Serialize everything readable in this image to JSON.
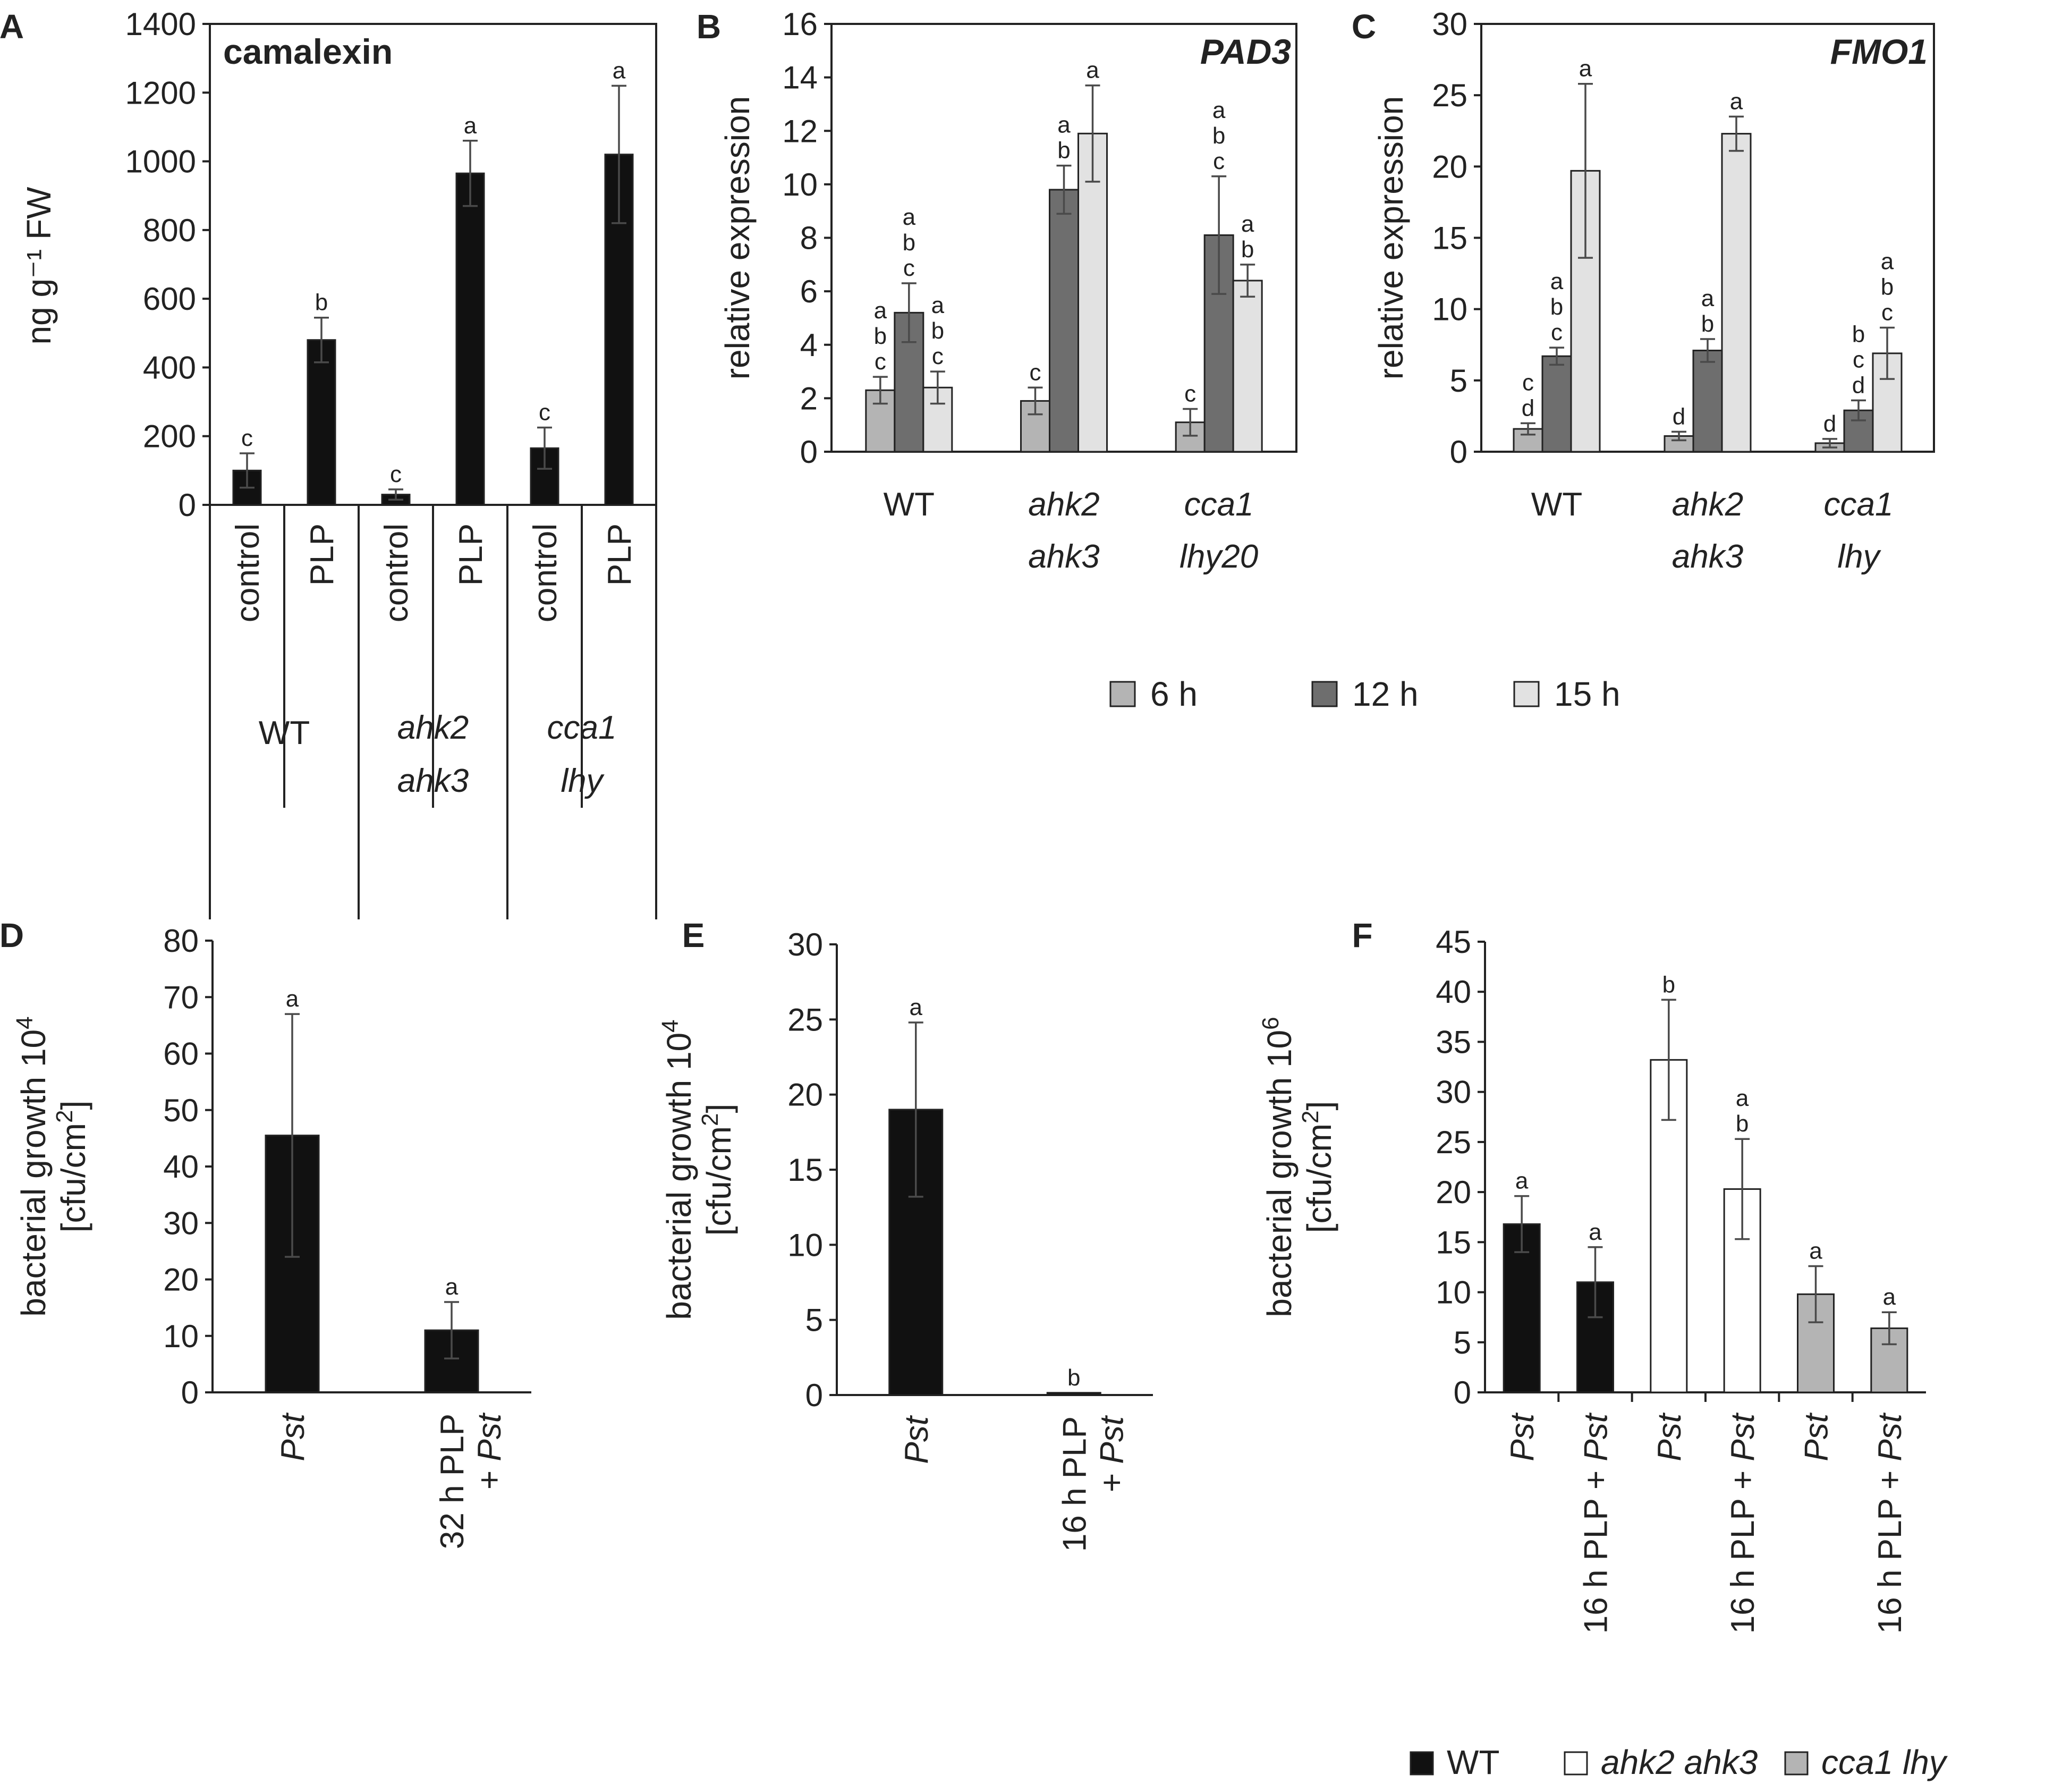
{
  "colors": {
    "black": "#111111",
    "dark_gray": "#6e6e6e",
    "mid_gray": "#b4b4b4",
    "light_gray": "#e2e2e2",
    "white": "#ffffff",
    "axis": "#222222",
    "error": "#4a4a4a"
  },
  "chart_data": [
    {
      "panel": "A",
      "type": "bar",
      "title": "camalexin",
      "ylabel": "ng g⁻¹ FW",
      "ylim": [
        0,
        1400
      ],
      "yticks": [
        "0",
        "200",
        "400",
        "600",
        "800",
        "1000",
        "1200",
        "1400"
      ],
      "categories": [
        "control",
        "PLP",
        "control",
        "PLP",
        "control",
        "PLP"
      ],
      "groups": [
        {
          "line1": "WT",
          "line2": ""
        },
        {
          "line1": "ahk2",
          "line2": "ahk3"
        },
        {
          "line1": "cca1",
          "line2": "lhy"
        }
      ],
      "values": [
        100,
        480,
        30,
        965,
        165,
        1020
      ],
      "errors": [
        50,
        65,
        15,
        95,
        60,
        200
      ],
      "letters": [
        "c",
        "b",
        "c",
        "a",
        "c",
        "a"
      ]
    },
    {
      "panel": "B",
      "type": "bar",
      "title": "PAD3",
      "ylabel": "relative expression",
      "ylim": [
        0,
        16
      ],
      "yticks": [
        "0",
        "2",
        "4",
        "6",
        "8",
        "10",
        "12",
        "14",
        "16"
      ],
      "groups": [
        {
          "line1": "WT",
          "line2": ""
        },
        {
          "line1": "ahk2",
          "line2": "ahk3"
        },
        {
          "line1": "cca1",
          "line2": "lhy20"
        }
      ],
      "series": [
        {
          "name": "6 h",
          "values": [
            2.3,
            1.9,
            1.1
          ],
          "errors": [
            0.5,
            0.5,
            0.5
          ],
          "letters": [
            "a\nb\nc",
            "c",
            "c"
          ]
        },
        {
          "name": "12 h",
          "values": [
            5.2,
            9.8,
            8.1
          ],
          "errors": [
            1.1,
            0.9,
            2.2
          ],
          "letters": [
            "a\nb\nc",
            "a\nb",
            "a\nb\nc"
          ]
        },
        {
          "name": "15 h",
          "values": [
            2.4,
            11.9,
            6.4
          ],
          "errors": [
            0.6,
            1.8,
            0.6
          ],
          "letters": [
            "a\nb\nc",
            "a",
            "a\nb"
          ]
        }
      ]
    },
    {
      "panel": "C",
      "type": "bar",
      "title": "FMO1",
      "ylabel": "relative expression",
      "ylim": [
        0,
        30
      ],
      "yticks": [
        "0",
        "5",
        "10",
        "15",
        "20",
        "25",
        "30"
      ],
      "groups": [
        {
          "line1": "WT",
          "line2": ""
        },
        {
          "line1": "ahk2",
          "line2": "ahk3"
        },
        {
          "line1": "cca1",
          "line2": "lhy"
        }
      ],
      "series": [
        {
          "name": "6 h",
          "values": [
            1.6,
            1.1,
            0.6
          ],
          "errors": [
            0.4,
            0.3,
            0.3
          ],
          "letters": [
            "c\nd",
            "d",
            "d"
          ]
        },
        {
          "name": "12 h",
          "values": [
            6.7,
            7.1,
            2.9
          ],
          "errors": [
            0.6,
            0.8,
            0.7
          ],
          "letters": [
            "a\nb\nc",
            "a\nb",
            "b\nc\nd"
          ]
        },
        {
          "name": "15 h",
          "values": [
            19.7,
            22.3,
            6.9
          ],
          "errors": [
            6.1,
            1.2,
            1.8
          ],
          "letters": [
            "a",
            "a",
            "a\nb\nc"
          ]
        }
      ]
    },
    {
      "legend_bc": [
        {
          "label": "6 h"
        },
        {
          "label": "12 h"
        },
        {
          "label": "15 h"
        }
      ]
    },
    {
      "panel": "D",
      "type": "bar",
      "ylabel_line1": "bacterial growth 10",
      "ylabel_sup": "4",
      "ylabel_line2": "[cfu/cm",
      "ylabel_sup2": "2",
      "ylabel_end": "]",
      "ylim": [
        0,
        80
      ],
      "yticks": [
        "0",
        "10",
        "20",
        "30",
        "40",
        "50",
        "60",
        "70",
        "80"
      ],
      "categories": [
        {
          "pre": "",
          "it": "Pst",
          "line2pre": "",
          "line2it": ""
        },
        {
          "pre": "32 h PLP",
          "it": "",
          "line2pre": "+ ",
          "line2it": "Pst"
        }
      ],
      "values": [
        45.5,
        11
      ],
      "errors": [
        21.5,
        5
      ],
      "letters": [
        "a",
        "a"
      ]
    },
    {
      "panel": "E",
      "type": "bar",
      "ylabel_line1": "bacterial growth 10",
      "ylabel_sup": "4",
      "ylabel_line2": "[cfu/cm",
      "ylabel_sup2": "2",
      "ylabel_end": "]",
      "ylim": [
        0,
        30
      ],
      "yticks": [
        "0",
        "5",
        "10",
        "15",
        "20",
        "25",
        "30"
      ],
      "categories": [
        {
          "pre": "",
          "it": "Pst",
          "line2pre": "",
          "line2it": ""
        },
        {
          "pre": "16 h PLP",
          "it": "",
          "line2pre": "+ ",
          "line2it": "Pst"
        }
      ],
      "values": [
        19,
        0.15
      ],
      "errors": [
        5.8,
        0
      ],
      "letters": [
        "a",
        "b"
      ]
    },
    {
      "panel": "F",
      "type": "bar",
      "ylabel_line1": "bacterial growth 10",
      "ylabel_sup": "6",
      "ylabel_line2": "[cfu/cm",
      "ylabel_sup2": "2",
      "ylabel_end": "]",
      "ylim": [
        0,
        45
      ],
      "yticks": [
        "0",
        "5",
        "10",
        "15",
        "20",
        "25",
        "30",
        "35",
        "40",
        "45"
      ],
      "categories": [
        {
          "pre": "",
          "it": "Pst"
        },
        {
          "pre": "16 h PLP + ",
          "it": "Pst"
        },
        {
          "pre": "",
          "it": "Pst"
        },
        {
          "pre": "16 h PLP + ",
          "it": "Pst"
        },
        {
          "pre": "",
          "it": "Pst"
        },
        {
          "pre": "16 h PLP + ",
          "it": "Pst"
        }
      ],
      "values": [
        16.8,
        11,
        33.2,
        20.3,
        9.8,
        6.4
      ],
      "errors": [
        2.8,
        3.5,
        6,
        5,
        2.8,
        1.6
      ],
      "letters": [
        "a",
        "a",
        "b",
        "a\nb",
        "a",
        "a"
      ],
      "legend": [
        {
          "label": "WT"
        },
        {
          "label": "ahk2 ahk3"
        },
        {
          "label": "cca1 lhy"
        }
      ]
    }
  ],
  "panel_letters": [
    "A",
    "B",
    "C",
    "D",
    "E",
    "F"
  ]
}
